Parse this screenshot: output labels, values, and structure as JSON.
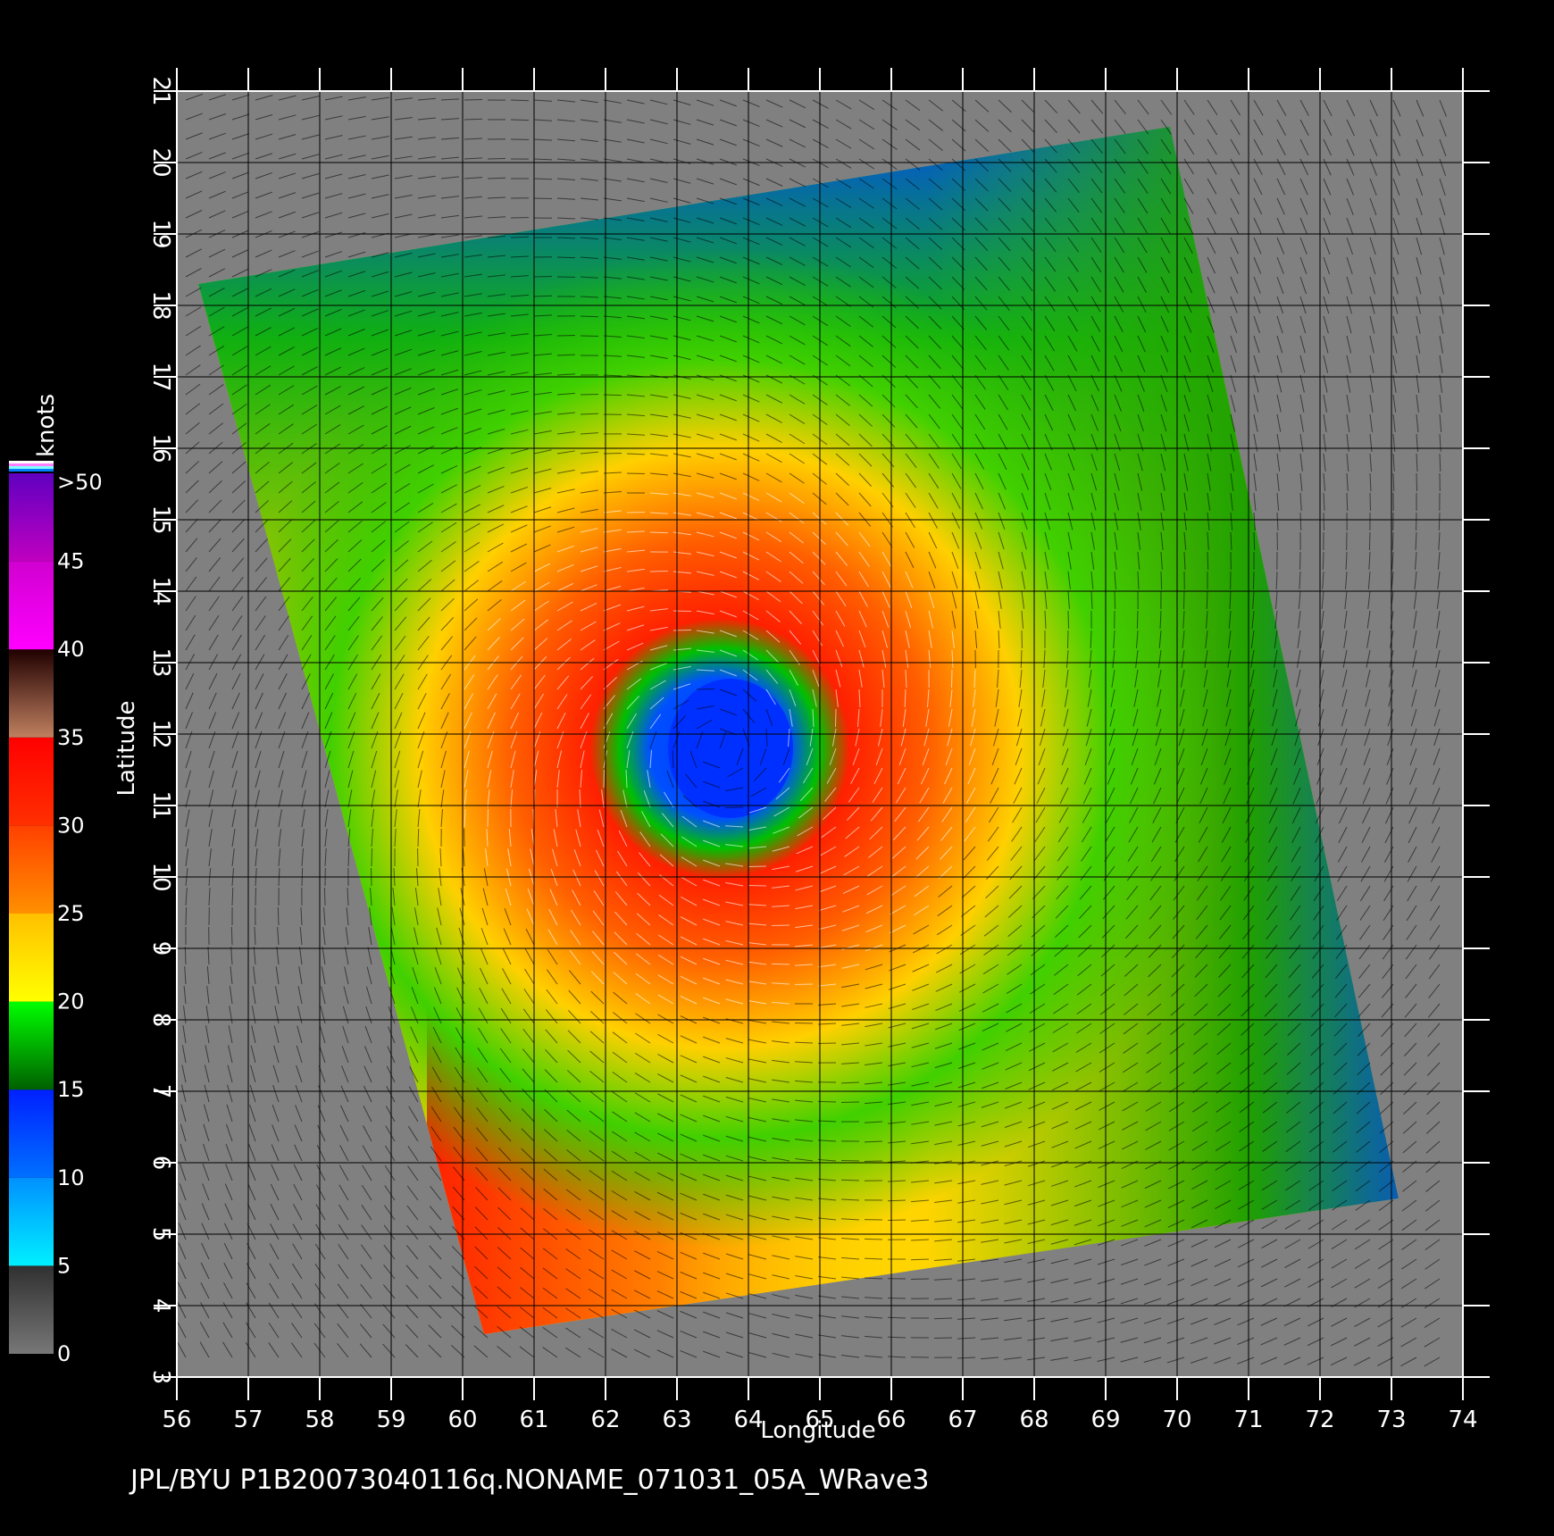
{
  "map": {
    "title_line": "JPL/BYU  P1B20073040116q.NONAME_071031_05A_WRave3",
    "x_axis_label": "Longitude",
    "y_axis_label": "Latitude",
    "lon_range": [
      56,
      74
    ],
    "lat_range": [
      3,
      21
    ],
    "lon_ticks": [
      "56",
      "57",
      "58",
      "59",
      "60",
      "61",
      "62",
      "63",
      "64",
      "65",
      "66",
      "67",
      "68",
      "69",
      "70",
      "71",
      "72",
      "73",
      "74"
    ],
    "lat_ticks": [
      "3",
      "4",
      "5",
      "6",
      "7",
      "8",
      "9",
      "10",
      "11",
      "12",
      "13",
      "14",
      "15",
      "16",
      "17",
      "18",
      "19",
      "20",
      "21"
    ],
    "background_color": "#000000",
    "land_no_data_color": "#808080",
    "grid_color": "#000000",
    "swath_corners_lonlat": [
      [
        56.3,
        18.3
      ],
      [
        69.9,
        20.5
      ],
      [
        73.1,
        5.5
      ],
      [
        60.3,
        3.6
      ]
    ],
    "storm_center_lonlat": [
      63.6,
      11.8
    ],
    "wind_barb_colors": {
      "low": "#000000",
      "high": "#ffffff"
    }
  },
  "legend": {
    "unit_label": "knots",
    "tick_labels": [
      "0",
      "5",
      "10",
      "15",
      "20",
      "25",
      "30",
      "35",
      "40",
      "45",
      ">50"
    ],
    "bands": [
      {
        "from": 0,
        "to": 5,
        "colors": [
          "#777777",
          "#303030"
        ]
      },
      {
        "from": 5,
        "to": 10,
        "colors": [
          "#00f0ff",
          "#0090ff"
        ]
      },
      {
        "from": 10,
        "to": 15,
        "colors": [
          "#0070ff",
          "#0020ff"
        ]
      },
      {
        "from": 15,
        "to": 20,
        "colors": [
          "#006000",
          "#00ff00"
        ]
      },
      {
        "from": 20,
        "to": 25,
        "colors": [
          "#ffff00",
          "#ffc000"
        ]
      },
      {
        "from": 25,
        "to": 30,
        "colors": [
          "#ff9000",
          "#ff4000"
        ]
      },
      {
        "from": 30,
        "to": 35,
        "colors": [
          "#ff3000",
          "#ff0000"
        ]
      },
      {
        "from": 35,
        "to": 40,
        "colors": [
          "#c08060",
          "#200000"
        ]
      },
      {
        "from": 40,
        "to": 45,
        "colors": [
          "#ff00ff",
          "#d000d0"
        ]
      },
      {
        "from": 45,
        "to": 50,
        "colors": [
          "#c000c0",
          "#6000c0"
        ]
      }
    ]
  }
}
